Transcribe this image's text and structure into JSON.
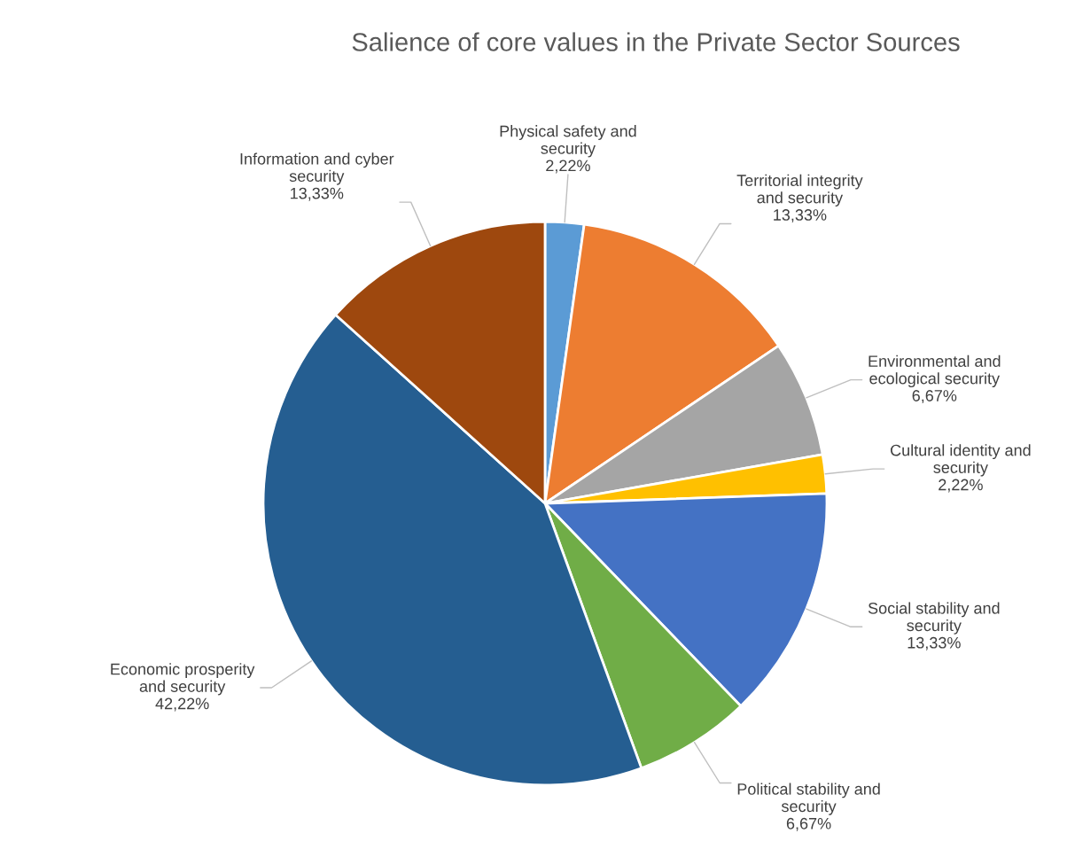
{
  "chart_data": {
    "type": "pie",
    "title": "Salience of core values in the Private Sector Sources",
    "categories": [
      "Physical safety and\nsecurity",
      "Territorial integrity\nand security",
      "Environmental and\necological security",
      "Cultural identity and\nsecurity",
      "Social stability and\nsecurity",
      "Political stability and\nsecurity",
      "Economic prosperity\nand security",
      "Information and cyber\nsecurity"
    ],
    "values": [
      2.22,
      13.33,
      6.67,
      2.22,
      13.33,
      6.67,
      42.22,
      13.33
    ],
    "value_labels": [
      "2,22%",
      "13,33%",
      "6,67%",
      "2,22%",
      "13,33%",
      "6,67%",
      "42,22%",
      "13,33%"
    ],
    "colors": [
      "#5b9bd5",
      "#ed7d31",
      "#a5a5a5",
      "#ffc000",
      "#4472c4",
      "#70ad47",
      "#255e91",
      "#9e480e"
    ]
  }
}
